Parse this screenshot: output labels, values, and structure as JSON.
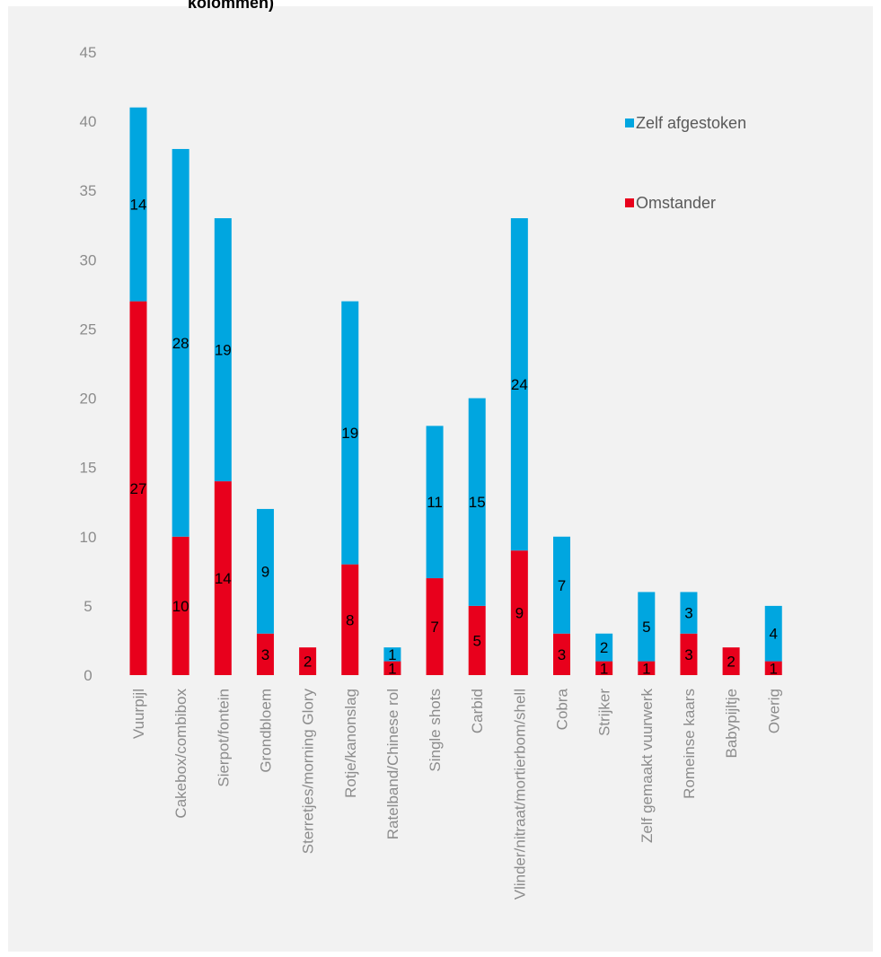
{
  "title_fragment": "kolommen)",
  "colors": {
    "zelf": "#00a6e0",
    "omstander": "#e8001c",
    "tick_text": "#8c8c8c"
  },
  "chart_data": {
    "type": "bar",
    "stacked": true,
    "categories": [
      "Vuurpijl",
      "Cakebox/combibox",
      "Sierpot/fontein",
      "Grondbloem",
      "Sterretjes/morning Glory",
      "Rotje/kanonslag",
      "Ratelband/Chinese rol",
      "Single shots",
      "Carbid",
      "Vlinder/nitraat/mortierbom/shell",
      "Cobra",
      "Strijker",
      "Zelf gemaakt vuurwerk",
      "Romeinse kaars",
      "Babypijltje",
      "Overig"
    ],
    "series": [
      {
        "name": "Omstander",
        "color": "#e8001c",
        "values": [
          27,
          10,
          14,
          3,
          2,
          8,
          1,
          7,
          5,
          9,
          3,
          1,
          1,
          3,
          2,
          1
        ]
      },
      {
        "name": "Zelf afgestoken",
        "color": "#00a6e0",
        "values": [
          14,
          28,
          19,
          9,
          0,
          19,
          1,
          11,
          15,
          24,
          7,
          2,
          5,
          3,
          0,
          4
        ]
      }
    ],
    "ylim": [
      0,
      45
    ],
    "yticks": [
      0,
      5,
      10,
      15,
      20,
      25,
      30,
      35,
      40,
      45
    ],
    "ytick_labels": [
      "0",
      "5",
      "10",
      "15",
      "20",
      "25",
      "30",
      "35",
      "40",
      "45"
    ],
    "legend": {
      "placement": "top-right",
      "entries": [
        "Zelf afgestoken",
        "Omstander"
      ]
    },
    "grid": false,
    "xlabel": "",
    "ylabel": ""
  }
}
